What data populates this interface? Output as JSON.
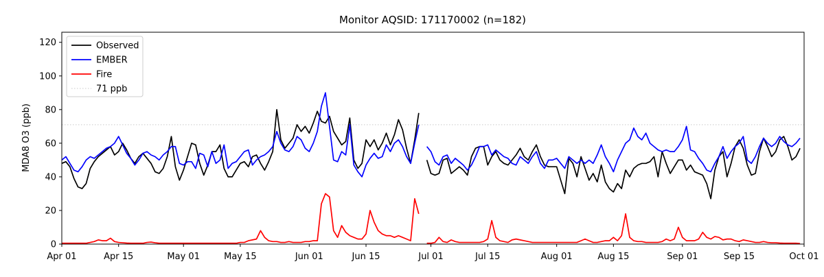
{
  "window": {
    "background": "#ffffff"
  },
  "chart_data": {
    "type": "line",
    "title": "Monitor AQSID: 171170002 (n=182)",
    "ylabel": "MDA8 O3 (ppb)",
    "ylim": [
      0,
      126
    ],
    "y_ticks": [
      0,
      20,
      40,
      60,
      80,
      100,
      120
    ],
    "x_range": [
      "Apr 01",
      "Oct 01"
    ],
    "x_ticks": [
      {
        "index": 0,
        "label": "Apr 01"
      },
      {
        "index": 14,
        "label": "Apr 15"
      },
      {
        "index": 30,
        "label": "May 01"
      },
      {
        "index": 44,
        "label": "May 15"
      },
      {
        "index": 61,
        "label": "Jun 01"
      },
      {
        "index": 75,
        "label": "Jun 15"
      },
      {
        "index": 91,
        "label": "Jul 01"
      },
      {
        "index": 105,
        "label": "Jul 15"
      },
      {
        "index": 122,
        "label": "Aug 01"
      },
      {
        "index": 136,
        "label": "Aug 15"
      },
      {
        "index": 153,
        "label": "Sep 01"
      },
      {
        "index": 167,
        "label": "Sep 15"
      },
      {
        "index": 183,
        "label": "Oct 01"
      }
    ],
    "grid": false,
    "legend_position": "upper left",
    "threshold": {
      "value": 71,
      "label": "71 ppb",
      "color": "#d3d3d3",
      "style": "dotted"
    },
    "series": [
      {
        "name": "Observed",
        "color": "#000000",
        "values": [
          48,
          49,
          46,
          39,
          34,
          33,
          36,
          45,
          49,
          52,
          54,
          56,
          58,
          53,
          55,
          60,
          56,
          51,
          48,
          52,
          54,
          51,
          48,
          43,
          42,
          45,
          52,
          64,
          46,
          38,
          44,
          52,
          60,
          59,
          48,
          41,
          47,
          55,
          55,
          59,
          45,
          40,
          40,
          44,
          48,
          49,
          46,
          52,
          53,
          48,
          44,
          49,
          55,
          80,
          62,
          57,
          60,
          63,
          71,
          67,
          70,
          66,
          72,
          79,
          73,
          72,
          76,
          67,
          63,
          59,
          61,
          75,
          50,
          45,
          48,
          62,
          58,
          62,
          56,
          60,
          66,
          59,
          65,
          74,
          68,
          57,
          48,
          62,
          78,
          null,
          50,
          42,
          41,
          42,
          50,
          51,
          42,
          44,
          46,
          44,
          41,
          52,
          57,
          58,
          58,
          47,
          52,
          55,
          50,
          48,
          47,
          50,
          53,
          57,
          52,
          50,
          55,
          59,
          52,
          47,
          46,
          46,
          46,
          38,
          30,
          51,
          48,
          40,
          52,
          45,
          38,
          42,
          37,
          47,
          37,
          33,
          31,
          36,
          33,
          44,
          40,
          45,
          47,
          48,
          48,
          49,
          52,
          40,
          55,
          48,
          42,
          46,
          50,
          50,
          44,
          47,
          43,
          42,
          41,
          36,
          27,
          44,
          52,
          55,
          40,
          48,
          58,
          62,
          57,
          47,
          41,
          42,
          55,
          63,
          58,
          52,
          55,
          62,
          64,
          58,
          50,
          52,
          57
        ]
      },
      {
        "name": "EMBER",
        "color": "#0000ff",
        "values": [
          50,
          52,
          48,
          44,
          43,
          46,
          50,
          52,
          51,
          53,
          55,
          57,
          58,
          60,
          64,
          59,
          54,
          51,
          47,
          50,
          54,
          55,
          53,
          52,
          50,
          53,
          55,
          58,
          58,
          48,
          47,
          49,
          49,
          45,
          54,
          53,
          46,
          55,
          48,
          50,
          59,
          45,
          48,
          49,
          52,
          55,
          56,
          47,
          50,
          52,
          53,
          55,
          58,
          67,
          60,
          56,
          55,
          58,
          64,
          62,
          57,
          55,
          60,
          67,
          82,
          90,
          70,
          50,
          49,
          55,
          53,
          71,
          47,
          43,
          40,
          47,
          51,
          54,
          51,
          52,
          59,
          55,
          60,
          62,
          58,
          52,
          48,
          60,
          71,
          null,
          58,
          55,
          49,
          47,
          52,
          53,
          48,
          51,
          49,
          47,
          44,
          47,
          52,
          58,
          58,
          59,
          53,
          56,
          54,
          52,
          51,
          48,
          47,
          52,
          50,
          48,
          52,
          55,
          48,
          45,
          50,
          50,
          51,
          48,
          45,
          52,
          50,
          48,
          50,
          48,
          50,
          48,
          53,
          59,
          52,
          48,
          43,
          50,
          55,
          60,
          62,
          69,
          64,
          62,
          66,
          60,
          58,
          56,
          55,
          56,
          55,
          55,
          58,
          62,
          70,
          56,
          55,
          51,
          48,
          44,
          43,
          48,
          52,
          58,
          51,
          55,
          58,
          60,
          64,
          50,
          48,
          52,
          58,
          63,
          60,
          58,
          60,
          64,
          61,
          59,
          58,
          60,
          63
        ]
      },
      {
        "name": "Fire",
        "color": "#ff0000",
        "values": [
          0.5,
          0.5,
          0.5,
          0.5,
          0.5,
          0.5,
          0.5,
          1,
          1.5,
          2.5,
          2,
          2,
          3.5,
          1.5,
          1,
          0.8,
          0.6,
          0.5,
          0.5,
          0.5,
          0.5,
          1,
          1.2,
          0.8,
          0.5,
          0.5,
          0.5,
          0.5,
          0.5,
          0.5,
          0.5,
          0.5,
          0.5,
          0.5,
          0.5,
          0.5,
          0.5,
          0.5,
          0.5,
          0.5,
          0.5,
          0.5,
          0.5,
          0.5,
          1,
          1,
          2,
          2.5,
          3,
          8,
          4,
          2,
          1.5,
          1.5,
          1,
          1,
          1.5,
          1,
          1,
          1,
          1.5,
          1.5,
          2,
          2,
          24,
          30,
          28,
          8,
          4,
          11,
          7,
          5,
          4,
          3,
          3,
          6,
          20,
          13,
          8,
          6,
          5,
          5,
          4,
          5,
          4,
          3,
          2,
          27,
          18,
          null,
          0.5,
          0.5,
          1,
          4,
          1.5,
          1,
          2.5,
          1.5,
          1,
          1,
          1,
          1,
          1,
          1,
          1.5,
          3,
          14,
          4,
          2,
          1.5,
          1,
          2.5,
          3,
          2.5,
          2,
          1.5,
          1,
          1,
          1,
          1,
          1,
          1,
          1,
          1,
          1,
          1,
          1,
          1,
          2,
          3,
          2,
          1,
          1,
          1.5,
          2,
          2,
          4,
          2,
          5,
          18,
          4,
          2,
          1.5,
          1.5,
          1,
          1,
          1,
          1,
          1.5,
          3,
          2,
          3,
          10,
          4,
          2,
          2,
          2,
          3,
          7,
          4,
          3,
          4.5,
          4,
          2.5,
          3,
          3,
          2,
          1.5,
          2.5,
          2,
          1.5,
          1,
          1,
          1.5,
          1,
          0.8,
          0.8,
          0.6,
          0.5,
          0.5,
          0.5,
          0.5,
          0.3
        ]
      }
    ]
  }
}
